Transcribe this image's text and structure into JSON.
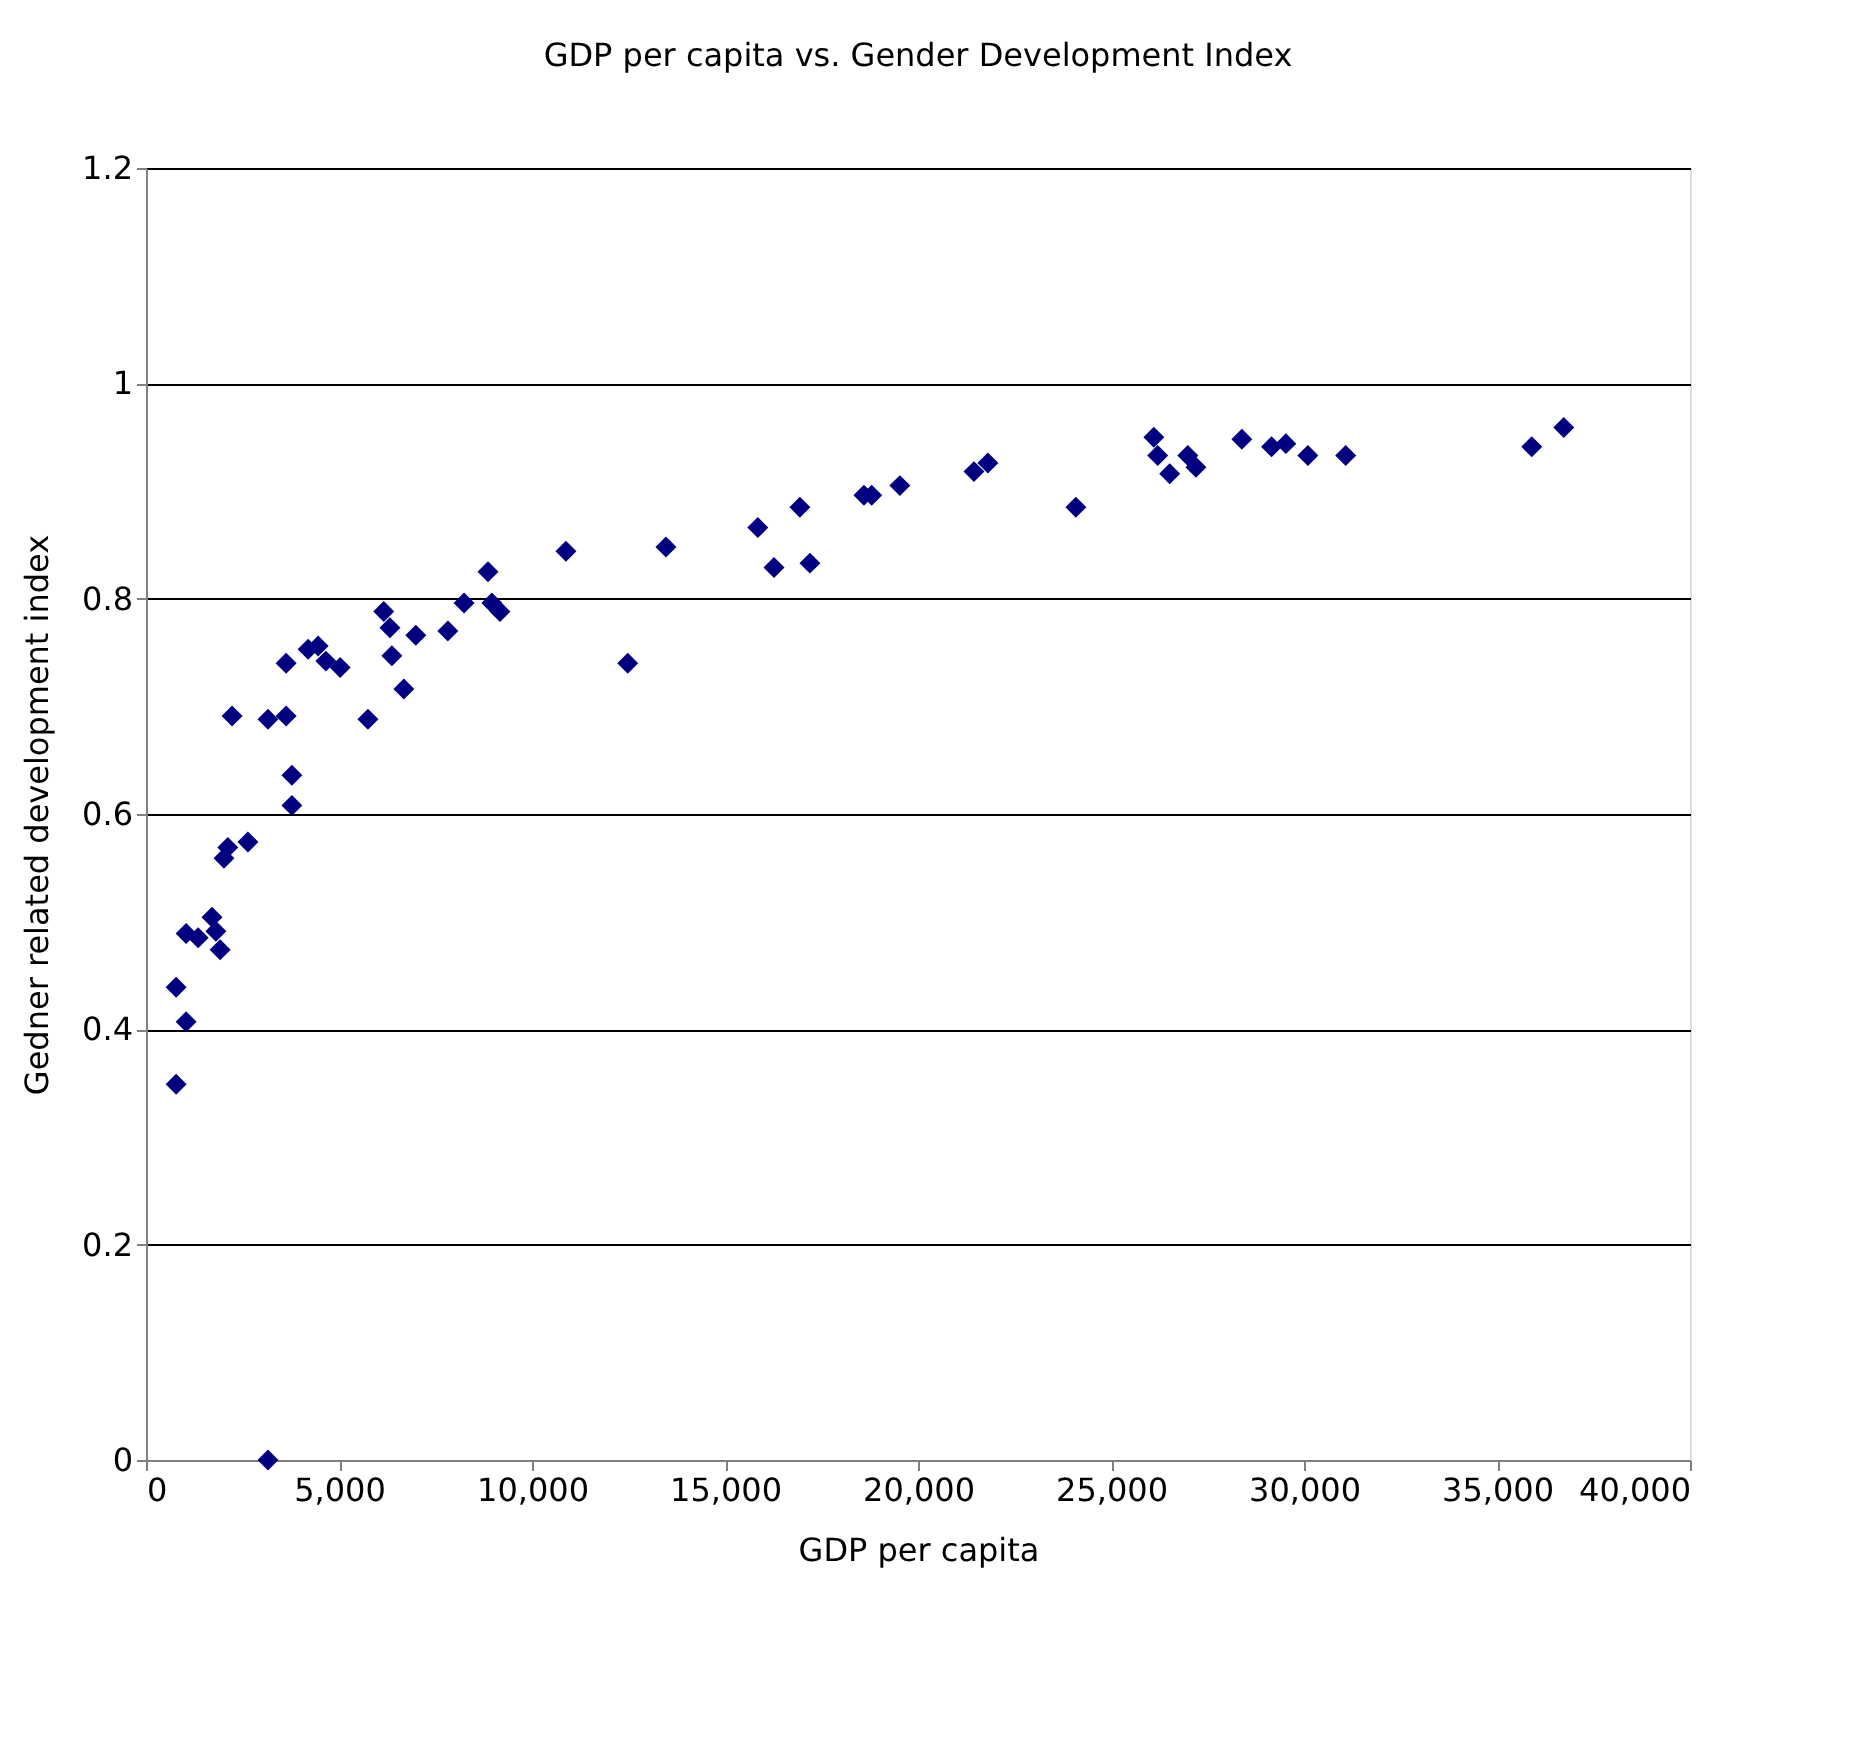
{
  "chart_data": {
    "type": "scatter",
    "title": "GDP per capita vs. Gender Development Index",
    "xlabel": "GDP per capita",
    "ylabel": "Gedner related development index",
    "x": [
      780,
      780,
      1040,
      1040,
      1350,
      1710,
      1810,
      1920,
      2020,
      2120,
      2640,
      2230,
      3160,
      3630,
      3630,
      3780,
      3780,
      4200,
      4460,
      4660,
      5030,
      5750,
      6160,
      6320,
      6370,
      6680,
      6990,
      7820,
      8240,
      8860,
      8960,
      9170,
      10880,
      12480,
      13470,
      15850,
      16270,
      16940,
      17200,
      18600,
      18800,
      19530,
      21450,
      21810,
      24090,
      26110,
      26210,
      26520,
      26990,
      27200,
      28390,
      29160,
      29530,
      30100,
      31080,
      35900,
      36730,
      3160
    ],
    "series": [
      {
        "color": "#000080",
        "values": [
          0.349,
          0.439,
          0.407,
          0.489,
          0.485,
          0.504,
          0.491,
          0.474,
          0.559,
          0.569,
          0.574,
          0.691,
          0.688,
          0.691,
          0.74,
          0.608,
          0.636,
          0.753,
          0.756,
          0.742,
          0.736,
          0.688,
          0.788,
          0.773,
          0.747,
          0.716,
          0.766,
          0.77,
          0.796,
          0.825,
          0.796,
          0.788,
          0.844,
          0.74,
          0.848,
          0.866,
          0.829,
          0.885,
          0.833,
          0.896,
          0.896,
          0.905,
          0.918,
          0.926,
          0.885,
          0.95,
          0.933,
          0.916,
          0.933,
          0.922,
          0.948,
          0.941,
          0.944,
          0.933,
          0.933,
          0.941,
          0.959,
          0.0
        ]
      }
    ],
    "xlim": [
      0,
      40000
    ],
    "xticks": [
      {
        "value": 0,
        "label": "0"
      },
      {
        "value": 5000,
        "label": "5,000"
      },
      {
        "value": 10000,
        "label": "10,000"
      },
      {
        "value": 15000,
        "label": "15,000"
      },
      {
        "value": 20000,
        "label": "20,000"
      },
      {
        "value": 25000,
        "label": "25,000"
      },
      {
        "value": 30000,
        "label": "30,000"
      },
      {
        "value": 35000,
        "label": "35,000"
      },
      {
        "value": 40000,
        "label": "40,000"
      }
    ],
    "ylim": [
      0,
      1.2
    ],
    "yticks": [
      0,
      0.2,
      0.4,
      0.6,
      0.8,
      1,
      1.2
    ],
    "grid": "y",
    "marker": "diamond",
    "legend": false
  }
}
